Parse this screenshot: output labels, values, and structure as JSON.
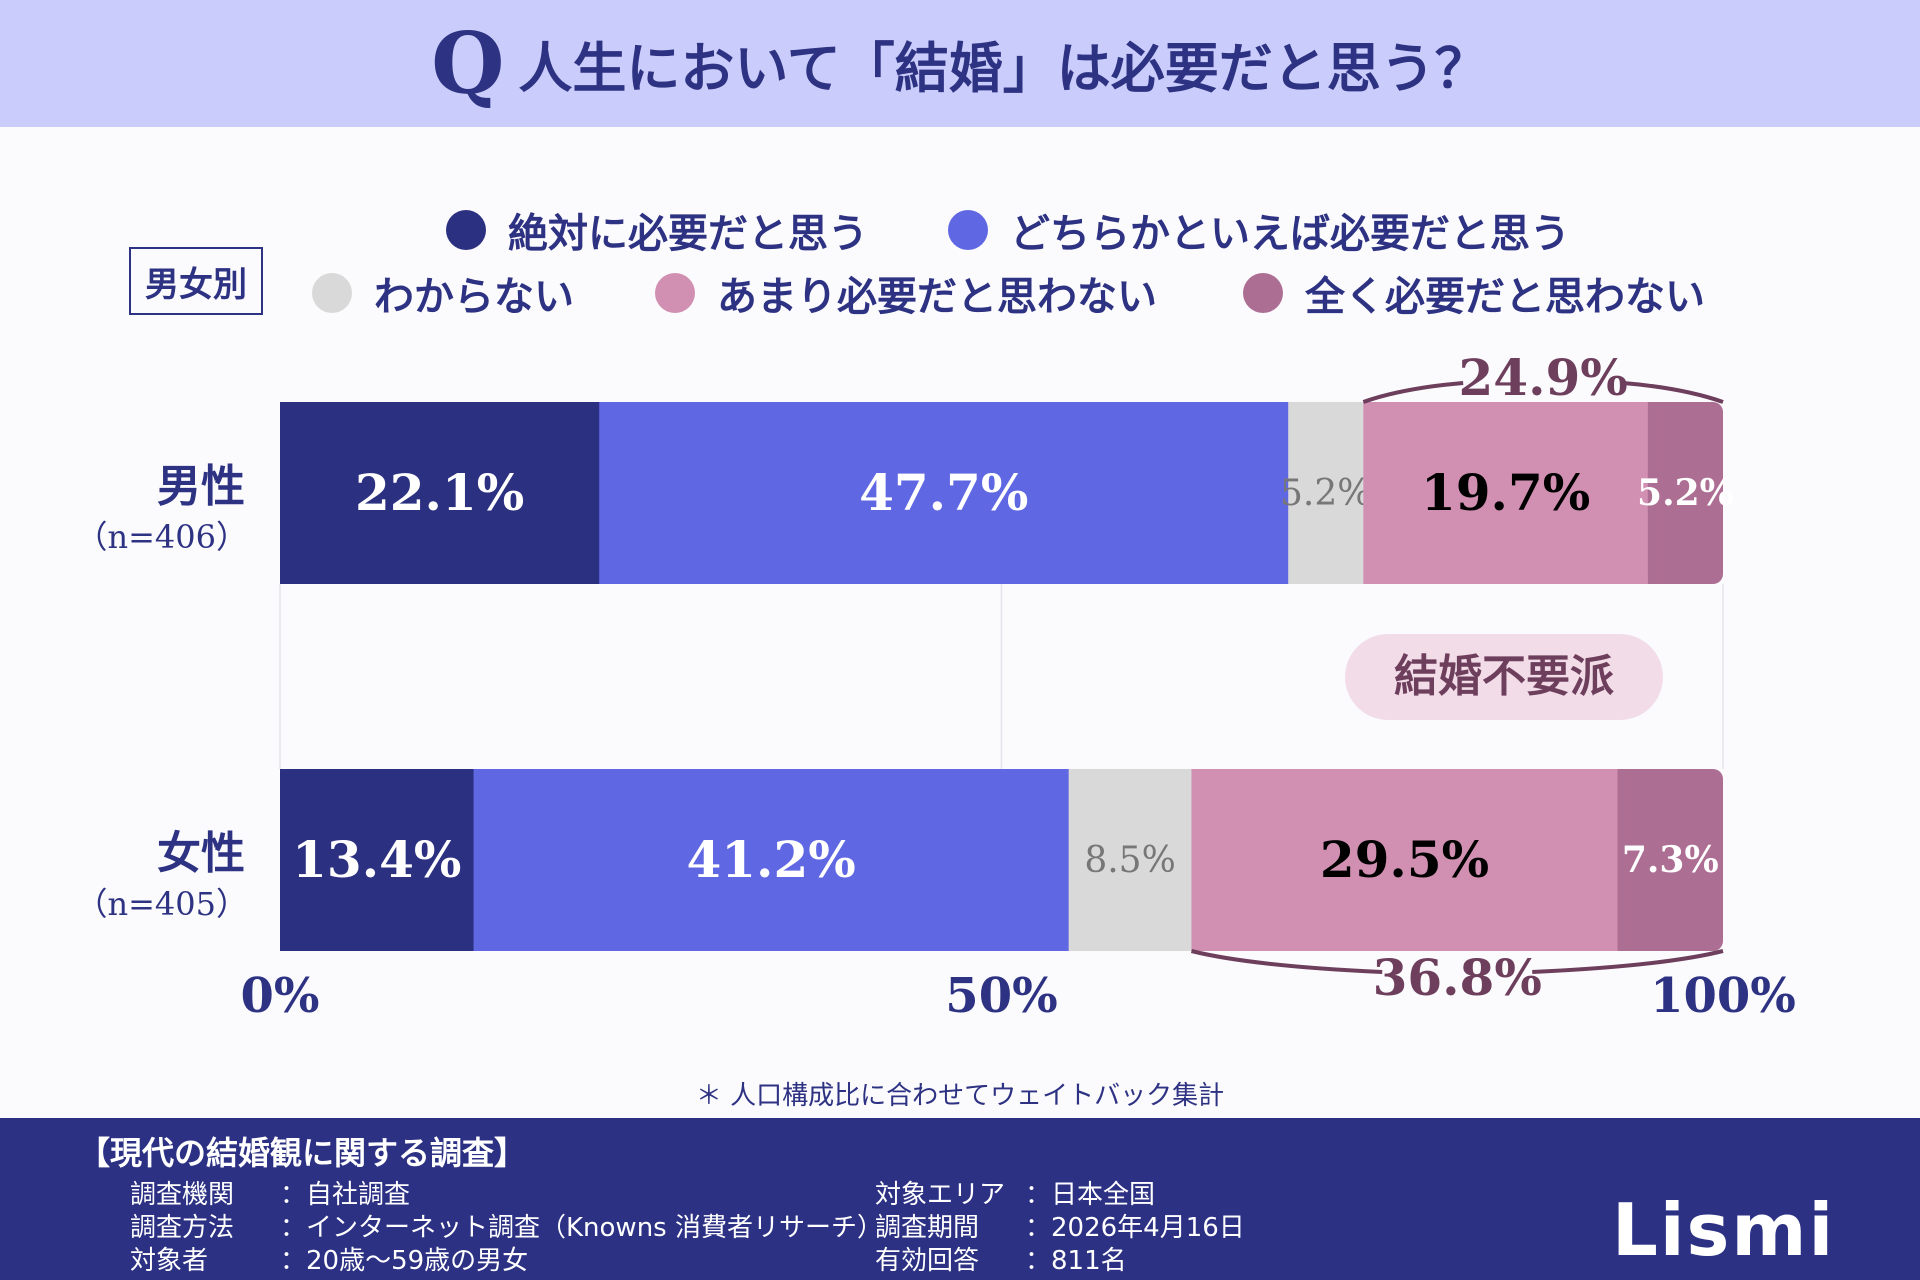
{
  "header": {
    "icon": "Q",
    "title": "人生において「結婚」は必要だと思う？"
  },
  "group_label": "男女別",
  "chart_data": {
    "type": "bar",
    "orientation": "horizontal",
    "stacked": true,
    "categories": [
      {
        "label": "男性",
        "n": "（n=406）"
      },
      {
        "label": "女性",
        "n": "（n=405）"
      }
    ],
    "series": [
      {
        "name": "絶対に必要だと思う",
        "color": "#2c3080",
        "values": [
          22.1,
          13.4
        ]
      },
      {
        "name": "どちらかといえば必要だと思う",
        "color": "#5f67e3",
        "values": [
          47.7,
          41.2
        ]
      },
      {
        "name": "わからない",
        "color": "#d9d9d9",
        "values": [
          5.2,
          8.5
        ]
      },
      {
        "name": "あまり必要だと思わない",
        "color": "#d18fb2",
        "values": [
          19.7,
          29.5
        ]
      },
      {
        "name": "全く必要だと思わない",
        "color": "#ad6e93",
        "values": [
          5.2,
          7.3
        ]
      }
    ],
    "xticks": [
      "0%",
      "50%",
      "100%"
    ],
    "xlim": [
      0,
      100
    ],
    "brackets": [
      "24.9%",
      "36.8%"
    ],
    "annotation": "結婚不要派",
    "legend": "top"
  },
  "footnote": "＊ 人口構成比に合わせてウェイトバック集計",
  "footer": {
    "title": "【現代の結婚観に関する調査】",
    "left": [
      {
        "k": "調査機関",
        "v": "：自社調査"
      },
      {
        "k": "調査方法",
        "v": "：インターネット調査（Knowns 消費者リサーチ）"
      },
      {
        "k": "対象者",
        "v": "：20歳～59歳の男女"
      }
    ],
    "right": [
      {
        "k": "対象エリア",
        "v": "：日本全国"
      },
      {
        "k": "調査期間",
        "v": "：2026年4月16日"
      },
      {
        "k": "有効回答",
        "v": "：811名"
      }
    ],
    "logo": "Lismi"
  }
}
